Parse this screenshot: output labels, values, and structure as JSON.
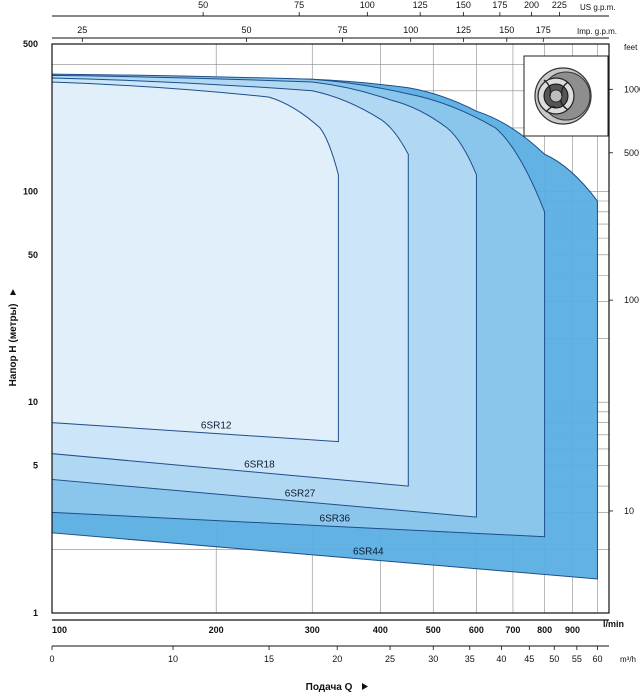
{
  "chart_data": {
    "type": "area",
    "title": "",
    "xlabel": "Подача Q",
    "ylabel": "Напор H (метры)",
    "x_unit": "l/min",
    "xlim": [
      100,
      1050
    ],
    "ylim": [
      1,
      500
    ],
    "x_scale": "log",
    "y_scale": "log",
    "grid": true,
    "x_ticks": [
      100,
      200,
      300,
      400,
      500,
      600,
      700,
      800,
      900
    ],
    "y_ticks": [
      1,
      5,
      10,
      50,
      100,
      500
    ],
    "secondary_axes": {
      "m3h": {
        "unit": "m³/h",
        "ticks": [
          0,
          10,
          15,
          20,
          25,
          30,
          35,
          40,
          45,
          50,
          55,
          60
        ]
      },
      "us_gpm": {
        "unit": "US g.p.m.",
        "ticks": [
          50,
          75,
          100,
          125,
          150,
          175,
          200,
          225
        ]
      },
      "imp_gpm": {
        "unit": "Imp. g.p.m.",
        "ticks": [
          25,
          50,
          75,
          100,
          125,
          150,
          175
        ]
      },
      "feet": {
        "unit": "feet",
        "ticks": [
          1000,
          500,
          100,
          10
        ]
      }
    },
    "series": [
      {
        "name": "6SR44",
        "color": "#5aaee3",
        "top": [
          [
            100,
            355
          ],
          [
            300,
            340
          ],
          [
            450,
            310
          ],
          [
            600,
            240
          ],
          [
            800,
            150
          ],
          [
            1000,
            90
          ]
        ],
        "bottom": [
          [
            100,
            2.4
          ],
          [
            1000,
            1.45
          ]
        ]
      },
      {
        "name": "6SR36",
        "color": "#8cc6ec",
        "top": [
          [
            100,
            360
          ],
          [
            300,
            340
          ],
          [
            450,
            290
          ],
          [
            650,
            200
          ],
          [
            800,
            80
          ]
        ],
        "bottom": [
          [
            100,
            3.0
          ],
          [
            800,
            2.3
          ]
        ]
      },
      {
        "name": "6SR27",
        "color": "#b3d9f3",
        "top": [
          [
            100,
            355
          ],
          [
            300,
            330
          ],
          [
            420,
            270
          ],
          [
            530,
            200
          ],
          [
            600,
            120
          ]
        ],
        "bottom": [
          [
            100,
            4.3
          ],
          [
            600,
            2.85
          ]
        ]
      },
      {
        "name": "6SR18",
        "color": "#cfe6f8",
        "top": [
          [
            100,
            345
          ],
          [
            300,
            300
          ],
          [
            400,
            220
          ],
          [
            450,
            150
          ]
        ],
        "bottom": [
          [
            100,
            5.7
          ],
          [
            450,
            4.0
          ]
        ]
      },
      {
        "name": "6SR12",
        "color": "#e2effb",
        "top": [
          [
            100,
            330
          ],
          [
            250,
            280
          ],
          [
            310,
            200
          ],
          [
            335,
            120
          ]
        ],
        "bottom": [
          [
            100,
            8.0
          ],
          [
            335,
            6.5
          ]
        ]
      }
    ]
  }
}
